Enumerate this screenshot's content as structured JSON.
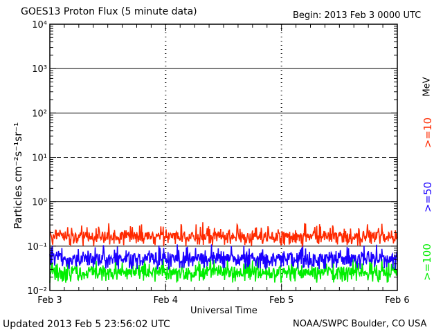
{
  "header": {
    "title": "GOES13 Proton Flux (5 minute data)",
    "begin": "Begin: 2013 Feb 3 0000 UTC"
  },
  "footer": {
    "updated": "Updated 2013 Feb  5 23:56:02 UTC",
    "source": "NOAA/SWPC Boulder, CO USA"
  },
  "legend": {
    "unit": "MeV",
    "items": [
      {
        "label": ">=10",
        "color": "#ff2a00"
      },
      {
        "label": ">=50",
        "color": "#1a00ff"
      },
      {
        "label": ">=100",
        "color": "#00ee00"
      }
    ]
  },
  "chart_data": {
    "type": "line",
    "xlabel": "Universal Time",
    "ylabel": "Particles cm⁻²s⁻¹sr⁻¹",
    "yscale": "log",
    "ylim": [
      0.01,
      10000
    ],
    "y_ticks": [
      "10⁴",
      "10³",
      "10²",
      "10¹",
      "10⁰",
      "10⁻¹",
      "10⁻²"
    ],
    "x_ticks": [
      "Feb 3",
      "Feb 4",
      "Feb 5",
      "Feb 6"
    ],
    "xlim": [
      "2013-02-03T00:00",
      "2013-02-06T00:00"
    ],
    "grid": true,
    "series": [
      {
        "name": ">=10 MeV",
        "color": "#ff2a00",
        "typical_range": [
          0.1,
          0.35
        ]
      },
      {
        "name": ">=50 MeV",
        "color": "#1a00ff",
        "typical_range": [
          0.03,
          0.12
        ]
      },
      {
        "name": ">=100 MeV",
        "color": "#00ee00",
        "typical_range": [
          0.015,
          0.06
        ]
      }
    ]
  }
}
